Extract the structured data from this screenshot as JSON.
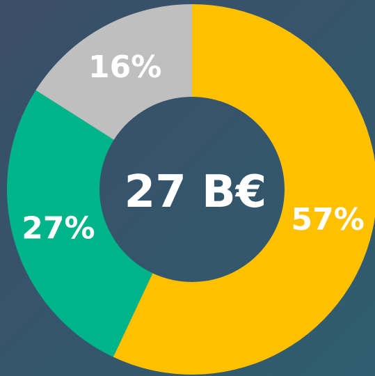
{
  "chart_data": {
    "type": "donut",
    "values": [
      57,
      27,
      16
    ],
    "value_labels": [
      "57%",
      "27%",
      "16%"
    ],
    "colors": [
      "#FFC000",
      "#00B48A",
      "#BFBFBF"
    ],
    "center_label": "27 B€"
  }
}
